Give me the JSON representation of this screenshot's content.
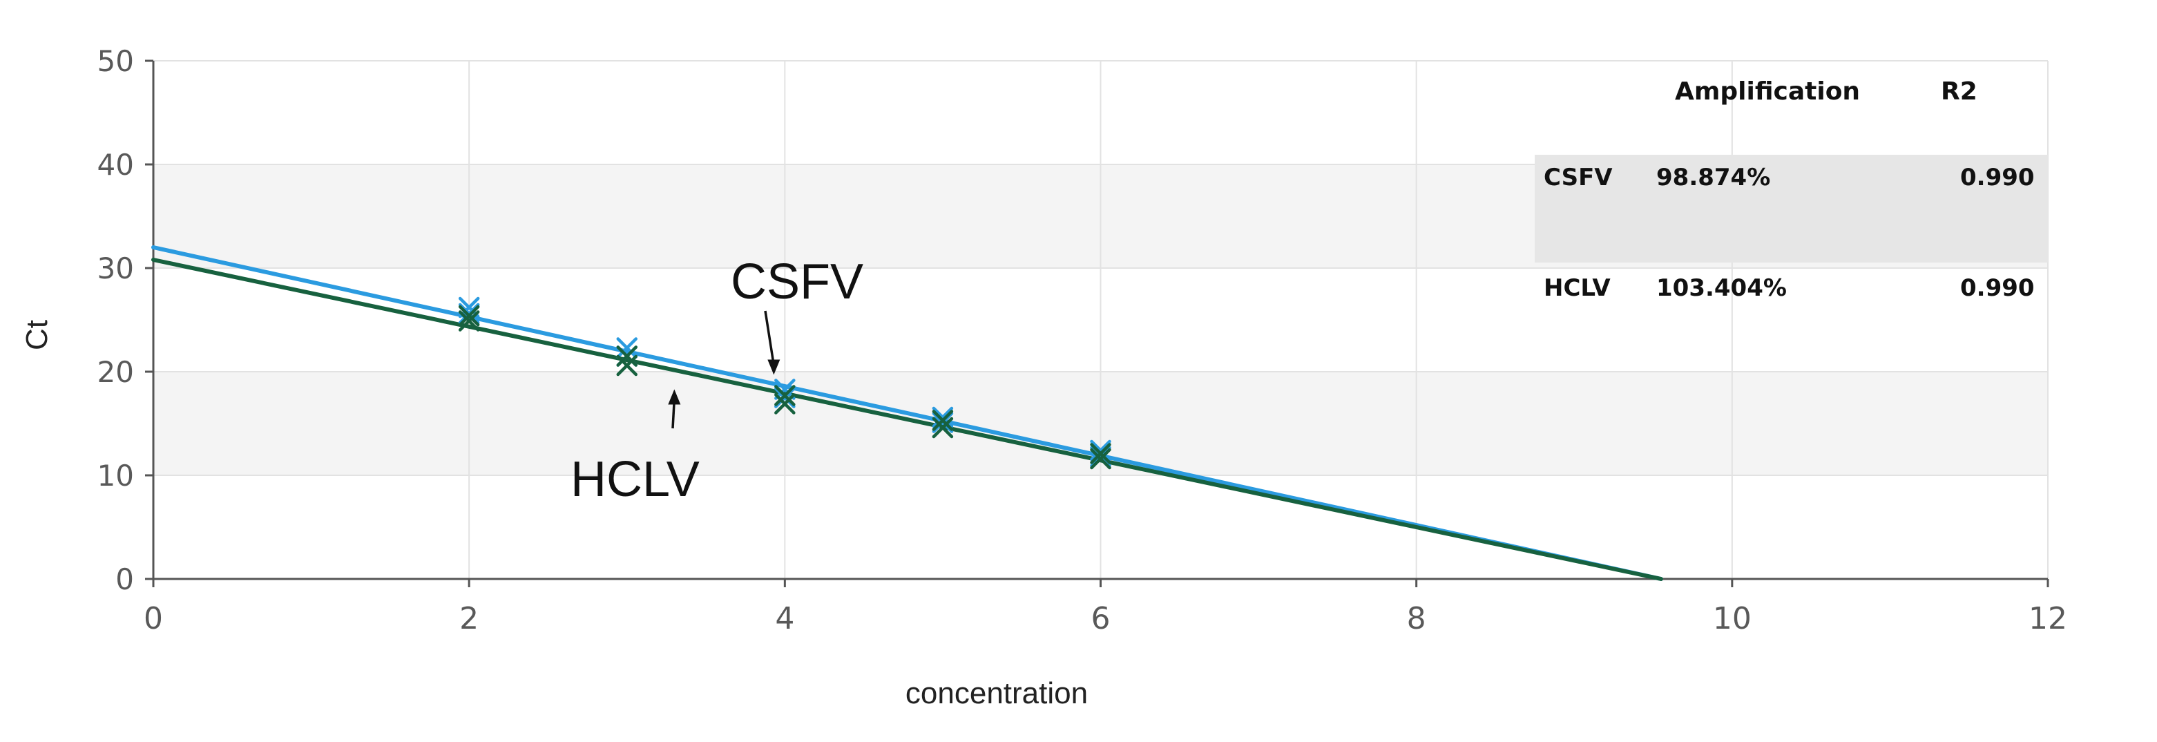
{
  "chart_data": {
    "type": "scatter",
    "xlabel": "concentration",
    "ylabel": "Ct",
    "xlim": [
      0,
      12
    ],
    "ylim": [
      0,
      50
    ],
    "x_ticks": [
      "0",
      "2",
      "4",
      "6",
      "8",
      "10",
      "12"
    ],
    "y_ticks": [
      "0",
      "10",
      "20",
      "30",
      "40",
      "50"
    ],
    "grid": true,
    "band_shading": "alternating horizontal bands",
    "series": [
      {
        "name": "CSFV",
        "color": "#2b9be0",
        "marker": "x",
        "points": [
          {
            "x": 2,
            "y": 26.2
          },
          {
            "x": 2,
            "y": 25.6
          },
          {
            "x": 3,
            "y": 22.3
          },
          {
            "x": 3,
            "y": 21.5
          },
          {
            "x": 4,
            "y": 18.3
          },
          {
            "x": 4,
            "y": 17.5
          },
          {
            "x": 5,
            "y": 15.6
          },
          {
            "x": 5,
            "y": 15.1
          },
          {
            "x": 6,
            "y": 12.4
          },
          {
            "x": 6,
            "y": 11.8
          }
        ],
        "fit": {
          "x0": 0,
          "y0": 32.0,
          "x1": 9.55,
          "y1": 0
        }
      },
      {
        "name": "HCLV",
        "color": "#17613f",
        "marker": "x",
        "points": [
          {
            "x": 2,
            "y": 25.4
          },
          {
            "x": 2,
            "y": 24.9
          },
          {
            "x": 3,
            "y": 21.5
          },
          {
            "x": 3,
            "y": 20.6
          },
          {
            "x": 4,
            "y": 17.7
          },
          {
            "x": 4,
            "y": 16.9
          },
          {
            "x": 5,
            "y": 15.3
          },
          {
            "x": 5,
            "y": 14.6
          },
          {
            "x": 6,
            "y": 12.1
          },
          {
            "x": 6,
            "y": 11.6
          }
        ],
        "fit": {
          "x0": 0,
          "y0": 30.8,
          "x1": 9.55,
          "y1": 0
        }
      }
    ],
    "annotations": [
      {
        "text": "CSFV",
        "arrow_to": {
          "x": 3.93,
          "y": 19.7
        }
      },
      {
        "text": "HCLV",
        "arrow_to": {
          "x": 3.3,
          "y": 18.3
        }
      }
    ],
    "table": {
      "headers": [
        "",
        "Amplification",
        "R2"
      ],
      "rows": [
        {
          "label": "CSFV",
          "amplification": "98.874%",
          "r2": "0.990"
        },
        {
          "label": "HCLV",
          "amplification": "103.404%",
          "r2": "0.990"
        }
      ]
    }
  }
}
